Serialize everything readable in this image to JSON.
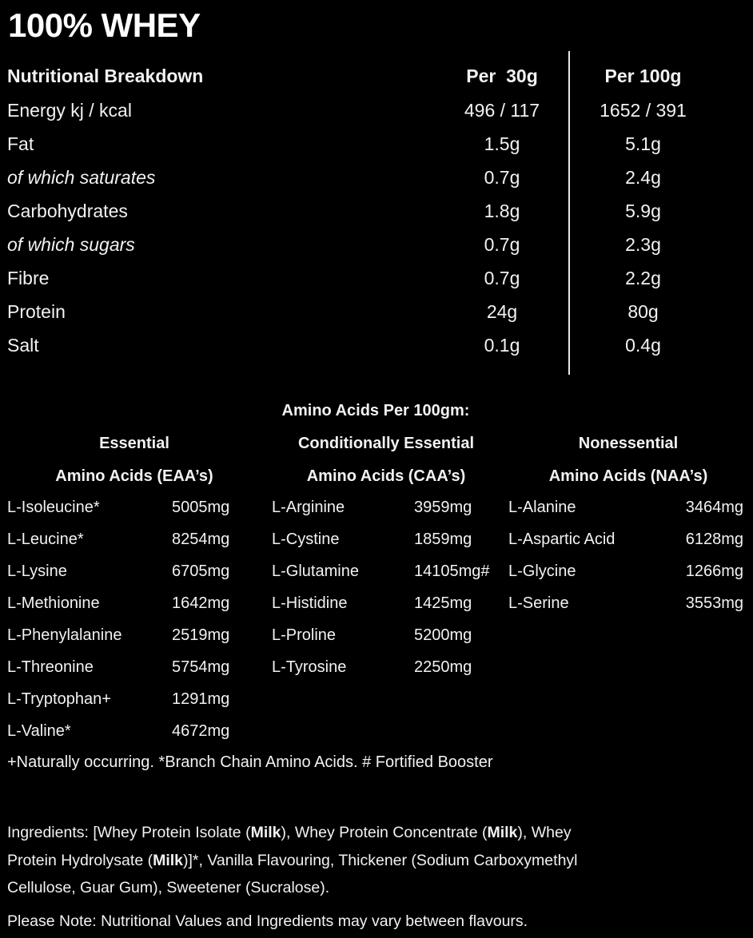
{
  "title": "100% WHEY",
  "nutrition": {
    "heading": "Nutritional Breakdown",
    "col1_header": "Per  30g",
    "col2_header": "Per 100g",
    "rows": [
      {
        "label": "Energy kj / kcal",
        "per_30g": "496 / 117",
        "per_100g": "1652 / 391",
        "italic": false
      },
      {
        "label": "Fat",
        "per_30g": "1.5g",
        "per_100g": "5.1g",
        "italic": false
      },
      {
        "label": "of which saturates",
        "per_30g": "0.7g",
        "per_100g": "2.4g",
        "italic": true
      },
      {
        "label": "Carbohydrates",
        "per_30g": "1.8g",
        "per_100g": "5.9g",
        "italic": false
      },
      {
        "label": "of which sugars",
        "per_30g": "0.7g",
        "per_100g": "2.3g",
        "italic": true
      },
      {
        "label": "Fibre",
        "per_30g": "0.7g",
        "per_100g": "2.2g",
        "italic": false
      },
      {
        "label": "Protein",
        "per_30g": "24g",
        "per_100g": "80g",
        "italic": false
      },
      {
        "label": "Salt",
        "per_30g": "0.1g",
        "per_100g": "0.4g",
        "italic": false
      }
    ]
  },
  "amino": {
    "title": "Amino Acids Per 100gm:",
    "groups": [
      {
        "header1": "Essential",
        "header2": "Amino Acids (EAA’s)",
        "items": [
          {
            "name": "L-Isoleucine*",
            "value": "5005mg"
          },
          {
            "name": "L-Leucine*",
            "value": "8254mg"
          },
          {
            "name": "L-Lysine",
            "value": "6705mg"
          },
          {
            "name": "L-Methionine",
            "value": "1642mg"
          },
          {
            "name": "L-Phenylalanine",
            "value": "2519mg"
          },
          {
            "name": "L-Threonine",
            "value": "5754mg"
          },
          {
            "name": "L-Tryptophan+",
            "value": "1291mg"
          },
          {
            "name": "L-Valine*",
            "value": "4672mg"
          }
        ]
      },
      {
        "header1": "Conditionally Essential",
        "header2": "Amino Acids (CAA’s)",
        "items": [
          {
            "name": "L-Arginine",
            "value": "3959mg"
          },
          {
            "name": "L-Cystine",
            "value": "1859mg"
          },
          {
            "name": "L-Glutamine",
            "value": "14105mg#"
          },
          {
            "name": "L-Histidine",
            "value": "1425mg"
          },
          {
            "name": "L-Proline",
            "value": "5200mg"
          },
          {
            "name": "L-Tyrosine",
            "value": "2250mg"
          }
        ]
      },
      {
        "header1": "Nonessential",
        "header2": "Amino Acids (NAA’s)",
        "items": [
          {
            "name": "L-Alanine",
            "value": "3464mg"
          },
          {
            "name": "L-Aspartic Acid",
            "value": "6128mg"
          },
          {
            "name": "L-Glycine",
            "value": "1266mg"
          },
          {
            "name": "L-Serine",
            "value": "3553mg"
          }
        ]
      }
    ],
    "footnote": "+Naturally occurring.  *Branch Chain Amino Acids.  # Fortified Booster"
  },
  "ingredients": {
    "line1": [
      {
        "text": "Ingredients: [Whey Protein Isolate (",
        "bold": false
      },
      {
        "text": "Milk",
        "bold": true
      },
      {
        "text": "), Whey Protein Concentrate (",
        "bold": false
      },
      {
        "text": "Milk",
        "bold": true
      },
      {
        "text": "), Whey",
        "bold": false
      }
    ],
    "line2": [
      {
        "text": "Protein Hydrolysate (",
        "bold": false
      },
      {
        "text": "Milk",
        "bold": true
      },
      {
        "text": ")]*, Vanilla Flavouring, Thickener (Sodium Carboxymethyl",
        "bold": false
      }
    ],
    "line3": [
      {
        "text": "Cellulose, Guar Gum), Sweetener (Sucralose).",
        "bold": false
      }
    ]
  },
  "note": "Please Note: Nutritional Values and Ingredients may vary between flavours."
}
